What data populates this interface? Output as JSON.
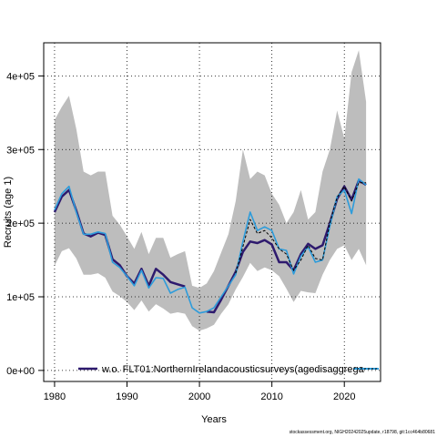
{
  "chart_data": {
    "type": "line",
    "xlabel": "Years",
    "ylabel": "Recruits (age 1)",
    "xlim": [
      1978.5,
      2025
    ],
    "ylim": [
      -15000,
      445000
    ],
    "x_ticks": [
      1980,
      1990,
      2000,
      2010,
      2020
    ],
    "y_ticks": [
      0,
      100000,
      200000,
      300000,
      400000
    ],
    "y_tick_labels": [
      "0e+00",
      "1e+05",
      "2e+05",
      "3e+05",
      "4e+05"
    ],
    "x_tick_labels": [
      "1980",
      "1990",
      "2000",
      "2010",
      "2020"
    ],
    "grid": true,
    "legend_position": "bottom",
    "band": {
      "x": [
        1980,
        1981,
        1982,
        1983,
        1984,
        1985,
        1986,
        1987,
        1988,
        1989,
        1990,
        1991,
        1992,
        1993,
        1994,
        1995,
        1996,
        1997,
        1998,
        1999,
        2000,
        2001,
        2002,
        2003,
        2004,
        2005,
        2006,
        2007,
        2008,
        2009,
        2010,
        2011,
        2012,
        2013,
        2014,
        2015,
        2016,
        2017,
        2018,
        2019,
        2020,
        2021,
        2022,
        2023
      ],
      "lower": [
        142000,
        162000,
        166000,
        152000,
        130000,
        130000,
        132000,
        126000,
        107000,
        101000,
        93000,
        82000,
        95000,
        80000,
        90000,
        84000,
        77000,
        79000,
        77000,
        60000,
        54000,
        57000,
        62000,
        77000,
        90000,
        110000,
        127000,
        146000,
        135000,
        140000,
        136000,
        128000,
        111000,
        93000,
        108000,
        106000,
        105000,
        130000,
        150000,
        165000,
        170000,
        150000,
        165000,
        143000
      ],
      "upper": [
        340000,
        358000,
        373000,
        328000,
        270000,
        265000,
        270000,
        270000,
        210000,
        198000,
        182000,
        165000,
        188000,
        158000,
        180000,
        180000,
        153000,
        158000,
        162000,
        115000,
        112000,
        118000,
        135000,
        160000,
        185000,
        230000,
        300000,
        260000,
        270000,
        265000,
        240000,
        225000,
        200000,
        215000,
        245000,
        205000,
        215000,
        270000,
        300000,
        353000,
        315000,
        405000,
        435000,
        365000
      ]
    },
    "series": [
      {
        "name": "w.o. FLT01:NorthernIrelandacousticsurveys(agedisaggrega",
        "color": "#2e1a6e",
        "x": [
          1980,
          1981,
          1982,
          1983,
          1984,
          1985,
          1986,
          1987,
          1988,
          1989,
          1990,
          1991,
          1992,
          1993,
          1994,
          1995,
          1996,
          1997,
          1998,
          2001,
          2002,
          2003,
          2004,
          2005,
          2006,
          2007,
          2008,
          2009,
          2010,
          2011,
          2012,
          2013,
          2014,
          2015,
          2016,
          2017,
          2018,
          2019,
          2020,
          2021,
          2022,
          2023
        ],
        "y": [
          215000,
          236000,
          245000,
          217000,
          186000,
          182000,
          187000,
          184000,
          151000,
          143000,
          128000,
          118000,
          138000,
          115000,
          138000,
          130000,
          120000,
          117000,
          114000,
          80000,
          79000,
          96000,
          115000,
          134000,
          161000,
          175000,
          173000,
          177000,
          171000,
          147000,
          147000,
          136000,
          158000,
          172000,
          165000,
          170000,
          200000,
          233000,
          250000,
          232000,
          258000,
          252000
        ]
      },
      {
        "name": "",
        "color": "#2d9cdb",
        "x": [
          1980,
          1981,
          1982,
          1983,
          1984,
          1985,
          1986,
          1987,
          1988,
          1989,
          1990,
          1991,
          1992,
          1993,
          1994,
          1995,
          1996,
          1997,
          1998,
          1999,
          2000,
          2001,
          2002,
          2003,
          2004,
          2005,
          2006,
          2007,
          2008,
          2009,
          2010,
          2011,
          2012,
          2013,
          2014,
          2015,
          2016,
          2017,
          2018,
          2019,
          2020,
          2021,
          2022,
          2023
        ],
        "y": [
          218000,
          240000,
          250000,
          215000,
          185000,
          185000,
          188000,
          186000,
          147000,
          140000,
          128000,
          115000,
          136000,
          112000,
          126000,
          125000,
          105000,
          110000,
          113000,
          85000,
          78000,
          80000,
          85000,
          100000,
          115000,
          130000,
          175000,
          215000,
          190000,
          195000,
          190000,
          165000,
          163000,
          131000,
          155000,
          168000,
          147000,
          150000,
          196000,
          236000,
          245000,
          213000,
          260000,
          252000
        ]
      },
      {
        "name": "",
        "color": "#000000",
        "dashed": true,
        "x": [
          2005,
          2006,
          2007,
          2008,
          2009,
          2010,
          2011,
          2012,
          2013,
          2014,
          2015,
          2016,
          2017,
          2018,
          2019,
          2020,
          2021,
          2022,
          2023
        ],
        "y": [
          132000,
          168000,
          205000,
          186000,
          190000,
          180000,
          165000,
          158000,
          136000,
          150000,
          170000,
          152000,
          150000,
          200000,
          235000,
          250000,
          230000,
          255000,
          255000
        ]
      }
    ]
  },
  "footer": "stockassessment.org, NIGH20242025update, r18798, git:1cc464b80681"
}
